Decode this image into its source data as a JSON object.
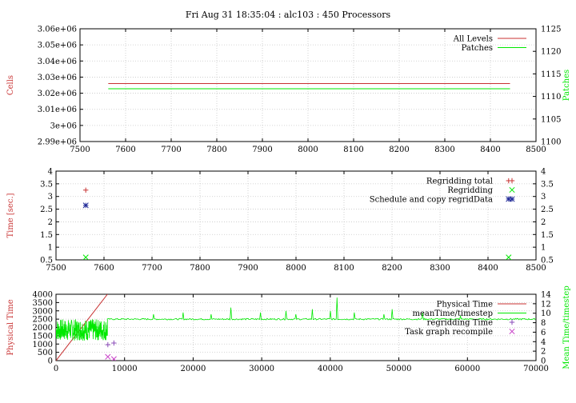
{
  "title": "Fri Aug 31 18:35:04 : alc103 : 450 Processors",
  "colors": {
    "red": "#c83232",
    "green": "#00e800",
    "blue": "#1e2896",
    "purple": "#8a4bb8",
    "magenta": "#c840c8"
  },
  "chart_data": [
    {
      "type": "line",
      "ylabel": "Cells",
      "y2label": "Patches",
      "xlim": [
        7500,
        8500
      ],
      "ylim": [
        2990000,
        3060000
      ],
      "y2lim": [
        1100,
        1125
      ],
      "xticks": [
        "7500",
        "7600",
        "7700",
        "7800",
        "7900",
        "8000",
        "8100",
        "8200",
        "8300",
        "8400",
        "8500"
      ],
      "yticks": [
        "2.99e+06",
        "3e+06",
        "3.01e+06",
        "3.02e+06",
        "3.03e+06",
        "3.04e+06",
        "3.05e+06",
        "3.06e+06"
      ],
      "y2ticks": [
        "1100",
        "1105",
        "1110",
        "1115",
        "1120",
        "1125"
      ],
      "legend_position": "top-right",
      "grid": true,
      "series": [
        {
          "name": "All Levels",
          "axis": "y",
          "color": "red",
          "x": [
            7562,
            8443
          ],
          "y": [
            3026000,
            3026000
          ]
        },
        {
          "name": "Patches",
          "axis": "y2",
          "color": "green",
          "x": [
            7562,
            8443
          ],
          "y": [
            1111.7,
            1111.7
          ]
        }
      ]
    },
    {
      "type": "scatter",
      "ylabel": "Time [sec.]",
      "xlim": [
        7500,
        8500
      ],
      "ylim": [
        0.5,
        4
      ],
      "xticks": [
        "7500",
        "7600",
        "7700",
        "7800",
        "7900",
        "8000",
        "8100",
        "8200",
        "8300",
        "8400",
        "8500"
      ],
      "yticks": [
        "0.5",
        "1",
        "1.5",
        "2",
        "2.5",
        "3",
        "3.5",
        "4"
      ],
      "y2ticks": [
        "0.5",
        "1",
        "1.5",
        "2",
        "2.5",
        "3",
        "3.5",
        "4"
      ],
      "legend_position": "top-right",
      "grid": true,
      "series": [
        {
          "name": "Regridding total",
          "marker": "plus",
          "color": "red",
          "x": [
            7562,
            8443
          ],
          "y": [
            3.25,
            3.62
          ]
        },
        {
          "name": "Regridding",
          "marker": "cross",
          "color": "green",
          "x": [
            7562,
            8443
          ],
          "y": [
            0.6,
            0.6
          ]
        },
        {
          "name": "Schedule and copy regridData",
          "marker": "star",
          "color": "blue",
          "x": [
            7562,
            8443
          ],
          "y": [
            2.65,
            2.9
          ]
        }
      ]
    },
    {
      "type": "line",
      "ylabel": "Physical Time",
      "y2label": "Mean Time/timestep",
      "xlim": [
        0,
        70000
      ],
      "ylim": [
        0,
        4000
      ],
      "y2lim": [
        0,
        14
      ],
      "xticks": [
        "0",
        "10000",
        "20000",
        "30000",
        "40000",
        "50000",
        "60000",
        "70000"
      ],
      "yticks": [
        "0",
        "500",
        "1000",
        "1500",
        "2000",
        "2500",
        "3000",
        "3500",
        "4000"
      ],
      "y2ticks": [
        "0",
        "2",
        "4",
        "6",
        "8",
        "10",
        "12",
        "14"
      ],
      "legend_position": "top-right",
      "grid": true,
      "series": [
        {
          "name": "Physical Time",
          "axis": "y",
          "color": "red",
          "x": [
            0,
            7500
          ],
          "y": [
            0,
            4000
          ]
        },
        {
          "name": "meanTime/timestep",
          "axis": "y",
          "color": "green",
          "segments": [
            {
              "x_range": [
                0,
                7500
              ],
              "y_band": [
                1200,
                2500
              ]
            },
            {
              "x_range": [
                7500,
                70000
              ],
              "y_base": 2500
            }
          ],
          "spikes": [
            {
              "x": 14200,
              "y": 2800
            },
            {
              "x": 18500,
              "y": 2900
            },
            {
              "x": 22600,
              "y": 2800
            },
            {
              "x": 25500,
              "y": 3200
            },
            {
              "x": 29800,
              "y": 2900
            },
            {
              "x": 33500,
              "y": 3000
            },
            {
              "x": 35000,
              "y": 2800
            },
            {
              "x": 37400,
              "y": 3100
            },
            {
              "x": 40000,
              "y": 3000
            },
            {
              "x": 41000,
              "y": 3800
            },
            {
              "x": 43500,
              "y": 2900
            },
            {
              "x": 47800,
              "y": 2800
            },
            {
              "x": 49000,
              "y": 3100
            },
            {
              "x": 53500,
              "y": 2900
            },
            {
              "x": 59000,
              "y": 2700
            }
          ]
        },
        {
          "name": "regridding Time",
          "marker": "plus",
          "color": "purple",
          "x": [
            7562,
            8443
          ],
          "y": [
            960,
            1060
          ]
        },
        {
          "name": "Task graph recompile",
          "marker": "cross",
          "color": "magenta",
          "x": [
            7562,
            8443
          ],
          "y": [
            230,
            100
          ]
        }
      ]
    }
  ]
}
